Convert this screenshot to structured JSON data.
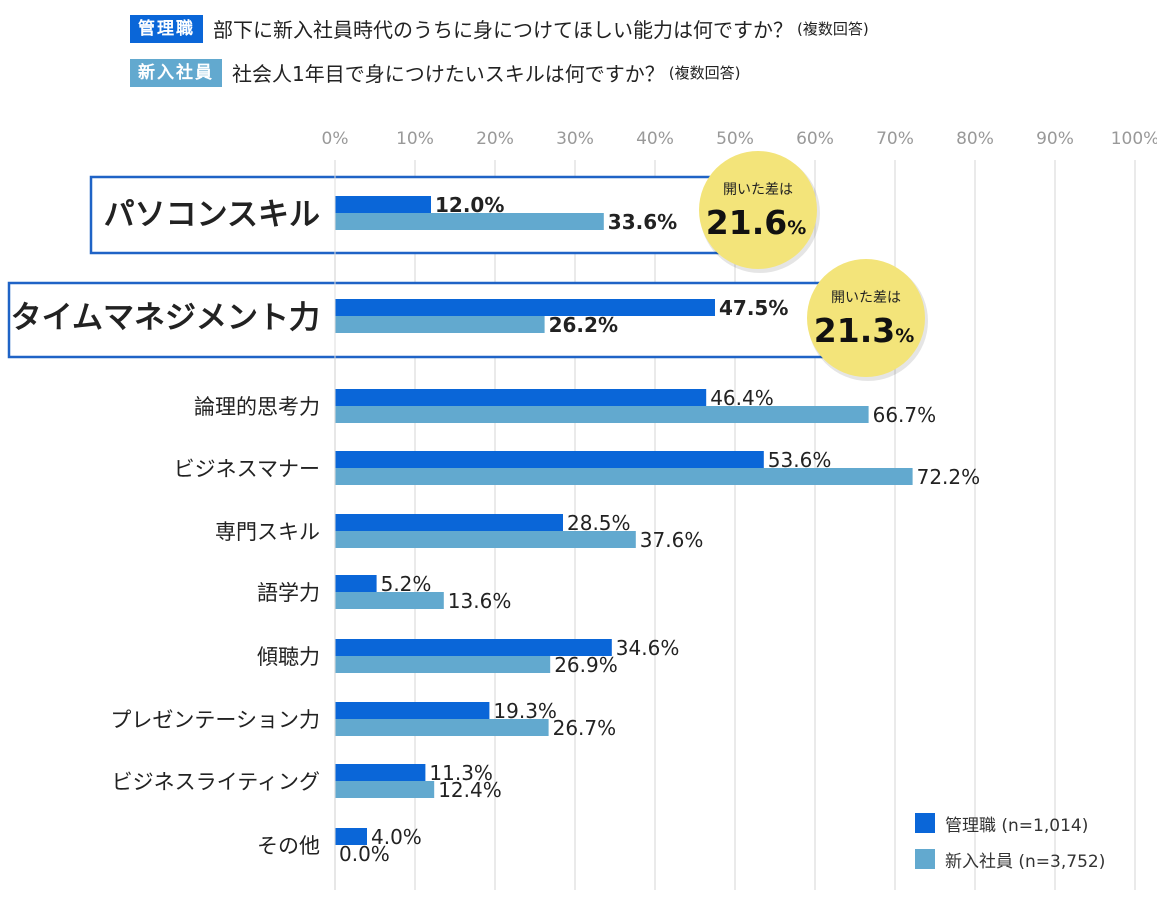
{
  "header": {
    "mgr_tag": "管理職",
    "mgr_question": "部下に新入社員時代のうちに身につけてほしい能力は何ですか？",
    "mgr_note": "(複数回答)",
    "new_tag": "新入社員",
    "new_question": "社会人1年目で身につけたいスキルは何ですか？",
    "new_note": "(複数回答)"
  },
  "colors": {
    "manager": "#0a66d8",
    "newcomer": "#62a9cf",
    "highlight_border": "#1f63c6",
    "gap_bubble": "#f3e47a"
  },
  "chart_data": {
    "type": "bar",
    "orientation": "horizontal",
    "xlim": [
      0,
      100
    ],
    "xticks": [
      "0%",
      "10%",
      "20%",
      "30%",
      "40%",
      "50%",
      "60%",
      "70%",
      "80%",
      "90%",
      "100%"
    ],
    "grid": true,
    "legend_position": "bottom-right",
    "categories": [
      "パソコンスキル",
      "タイムマネジメント力",
      "論理的思考力",
      "ビジネスマナー",
      "専門スキル",
      "語学力",
      "傾聴力",
      "プレゼンテーション力",
      "ビジネスライティング",
      "その他"
    ],
    "highlighted": [
      "パソコンスキル",
      "タイムマネジメント力"
    ],
    "series": [
      {
        "name": "管理職 (n=1,014)",
        "values": [
          12.0,
          47.5,
          46.4,
          53.6,
          28.5,
          5.2,
          34.6,
          19.3,
          11.3,
          4.0
        ]
      },
      {
        "name": "新入社員 (n=3,752)",
        "values": [
          33.6,
          26.2,
          66.7,
          72.2,
          37.6,
          13.6,
          26.9,
          26.7,
          12.4,
          0.0
        ]
      }
    ],
    "annotations": [
      {
        "category": "パソコンスキル",
        "label": "開いた差は",
        "value": "21.6",
        "unit": "%"
      },
      {
        "category": "タイムマネジメント力",
        "label": "開いた差は",
        "value": "21.3",
        "unit": "%"
      }
    ]
  }
}
